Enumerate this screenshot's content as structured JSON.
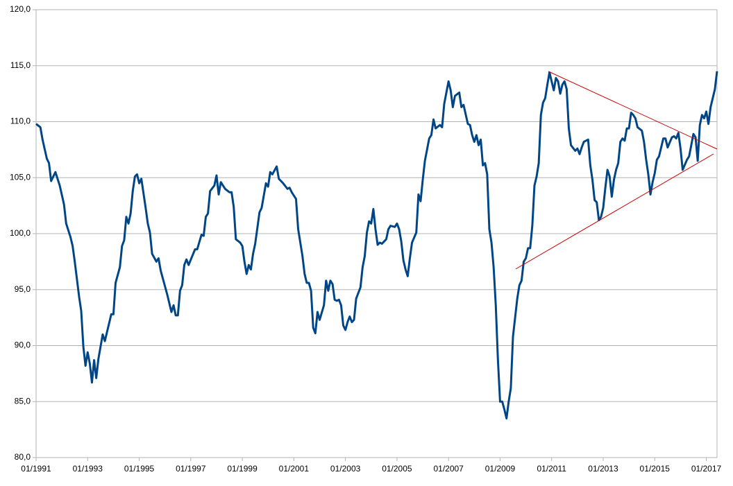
{
  "chart_data": {
    "type": "line",
    "x": [
      "01/1991",
      "03/1991",
      "04/1991",
      "06/1991",
      "07/1991",
      "08/1991",
      "10/1991",
      "12/1991",
      "02/1992",
      "03/1992",
      "05/1992",
      "06/1992",
      "07/1992",
      "09/1992",
      "10/1992",
      "11/1992",
      "12/1992",
      "01/1993",
      "02/1993",
      "03/1993",
      "04/1993",
      "05/1993",
      "06/1993",
      "08/1993",
      "09/1993",
      "12/1993",
      "01/1994",
      "02/1994",
      "04/1994",
      "05/1994",
      "06/1994",
      "07/1994",
      "08/1994",
      "09/1994",
      "10/1994",
      "11/1994",
      "12/1994",
      "01/1995",
      "02/1995",
      "04/1995",
      "05/1995",
      "06/1995",
      "07/1995",
      "09/1995",
      "10/1995",
      "11/1995",
      "12/1995",
      "02/1996",
      "04/1996",
      "05/1996",
      "06/1996",
      "07/1996",
      "08/1996",
      "09/1996",
      "10/1996",
      "11/1996",
      "12/1996",
      "03/1997",
      "04/1997",
      "06/1997",
      "07/1997",
      "08/1997",
      "09/1997",
      "10/1997",
      "12/1997",
      "01/1998",
      "02/1998",
      "03/1998",
      "05/1998",
      "07/1998",
      "08/1998",
      "09/1998",
      "10/1998",
      "12/1998",
      "01/1999",
      "02/1999",
      "03/1999",
      "04/1999",
      "05/1999",
      "06/1999",
      "07/1999",
      "09/1999",
      "10/1999",
      "12/1999",
      "01/2000",
      "02/2000",
      "03/2000",
      "05/2000",
      "06/2000",
      "08/2000",
      "10/2000",
      "11/2000",
      "12/2000",
      "02/2001",
      "03/2001",
      "05/2001",
      "06/2001",
      "07/2001",
      "08/2001",
      "09/2001",
      "10/2001",
      "11/2001",
      "12/2001",
      "01/2002",
      "03/2002",
      "04/2002",
      "05/2002",
      "06/2002",
      "07/2002",
      "08/2002",
      "09/2002",
      "10/2002",
      "11/2002",
      "12/2002",
      "01/2003",
      "02/2003",
      "03/2003",
      "04/2003",
      "05/2003",
      "06/2003",
      "08/2003",
      "09/2003",
      "10/2003",
      "11/2003",
      "12/2003",
      "01/2004",
      "02/2004",
      "03/2004",
      "04/2004",
      "05/2004",
      "06/2004",
      "08/2004",
      "09/2004",
      "10/2004",
      "12/2004",
      "01/2005",
      "02/2005",
      "03/2005",
      "04/2005",
      "05/2005",
      "06/2005",
      "07/2005",
      "08/2005",
      "10/2005",
      "11/2005",
      "12/2005",
      "01/2006",
      "02/2006",
      "04/2006",
      "05/2006",
      "06/2006",
      "07/2006",
      "09/2006",
      "10/2006",
      "11/2006",
      "01/2007",
      "02/2007",
      "03/2007",
      "04/2007",
      "06/2007",
      "07/2007",
      "08/2007",
      "10/2007",
      "11/2007",
      "12/2007",
      "01/2008",
      "02/2008",
      "03/2008",
      "04/2008",
      "05/2008",
      "06/2008",
      "07/2008",
      "08/2008",
      "09/2008",
      "10/2008",
      "11/2008",
      "12/2008",
      "01/2009",
      "02/2009",
      "03/2009",
      "04/2009",
      "05/2009",
      "06/2009",
      "07/2009",
      "09/2009",
      "10/2009",
      "11/2009",
      "12/2009",
      "01/2010",
      "02/2010",
      "03/2010",
      "04/2010",
      "05/2010",
      "06/2010",
      "07/2010",
      "08/2010",
      "09/2010",
      "10/2010",
      "11/2010",
      "12/2010",
      "02/2011",
      "03/2011",
      "04/2011",
      "05/2011",
      "06/2011",
      "07/2011",
      "08/2011",
      "09/2011",
      "10/2011",
      "12/2011",
      "01/2012",
      "02/2012",
      "03/2012",
      "04/2012",
      "06/2012",
      "07/2012",
      "08/2012",
      "09/2012",
      "10/2012",
      "11/2012",
      "12/2012",
      "01/2013",
      "02/2013",
      "03/2013",
      "04/2013",
      "05/2013",
      "06/2013",
      "07/2013",
      "08/2013",
      "09/2013",
      "10/2013",
      "11/2013",
      "12/2013",
      "01/2014",
      "02/2014",
      "03/2014",
      "04/2014",
      "05/2014",
      "07/2014",
      "08/2014",
      "09/2014",
      "10/2014",
      "11/2014",
      "12/2014",
      "01/2015",
      "02/2015",
      "03/2015",
      "04/2015",
      "05/2015",
      "06/2015",
      "07/2015",
      "09/2015",
      "10/2015",
      "11/2015",
      "12/2015",
      "01/2016",
      "02/2016",
      "04/2016",
      "05/2016",
      "06/2016",
      "07/2016",
      "08/2016",
      "09/2016",
      "10/2016",
      "11/2016",
      "12/2016",
      "01/2017",
      "02/2017",
      "03/2017",
      "04/2017",
      "05/2017",
      "06/2017"
    ],
    "series": [
      {
        "color": "#004586",
        "values": [
          109.8,
          109.5,
          108.4,
          106.7,
          106.3,
          104.7,
          105.5,
          104.3,
          102.6,
          100.9,
          99.7,
          98.9,
          97.5,
          94.4,
          93.1,
          89.9,
          88.2,
          89.4,
          88.4,
          86.7,
          88.7,
          87.1,
          88.8,
          91.0,
          90.4,
          92.8,
          92.8,
          95.6,
          97.0,
          98.9,
          99.4,
          101.5,
          100.9,
          101.8,
          103.8,
          105.1,
          105.3,
          104.5,
          104.9,
          102.3,
          100.9,
          100.1,
          98.2,
          97.5,
          97.8,
          96.7,
          96.0,
          94.6,
          93.0,
          93.6,
          92.7,
          92.7,
          94.9,
          95.4,
          97.2,
          97.7,
          97.2,
          98.6,
          98.6,
          99.9,
          99.8,
          101.5,
          101.8,
          103.8,
          104.3,
          105.2,
          103.5,
          104.6,
          104.0,
          103.7,
          103.7,
          102.4,
          99.5,
          99.2,
          98.9,
          97.5,
          96.4,
          97.2,
          96.8,
          98.2,
          99.1,
          101.9,
          102.3,
          104.5,
          104.2,
          105.5,
          105.3,
          106.0,
          104.9,
          104.5,
          104.0,
          104.1,
          103.7,
          103.1,
          100.4,
          98.0,
          96.4,
          95.6,
          95.6,
          94.9,
          91.6,
          91.1,
          93.0,
          92.3,
          93.6,
          95.8,
          94.9,
          95.8,
          95.5,
          94.1,
          94.0,
          94.1,
          93.6,
          91.8,
          91.4,
          92.1,
          92.6,
          92.1,
          92.3,
          94.2,
          95.2,
          97.0,
          98.0,
          100.1,
          101.1,
          100.9,
          102.2,
          100.4,
          99.0,
          99.2,
          99.1,
          99.5,
          100.4,
          100.7,
          100.6,
          100.9,
          100.4,
          99.3,
          97.6,
          96.8,
          96.2,
          97.8,
          99.2,
          100.1,
          103.5,
          102.9,
          104.8,
          106.5,
          108.5,
          108.8,
          110.2,
          109.4,
          109.7,
          109.5,
          111.6,
          113.6,
          112.8,
          111.3,
          112.3,
          112.6,
          111.3,
          111.5,
          109.8,
          109.7,
          108.8,
          108.2,
          108.8,
          107.9,
          108.4,
          106.1,
          106.3,
          105.3,
          100.4,
          99.2,
          97.0,
          93.6,
          88.7,
          85.0,
          85.0,
          84.3,
          83.5,
          85.0,
          86.2,
          90.8,
          94.2,
          95.4,
          95.8,
          97.5,
          97.8,
          98.7,
          98.7,
          100.7,
          104.3,
          105.1,
          106.3,
          110.6,
          111.7,
          112.1,
          113.3,
          114.4,
          112.8,
          113.9,
          113.6,
          112.5,
          113.3,
          113.6,
          112.9,
          109.4,
          107.9,
          107.4,
          107.6,
          107.1,
          107.7,
          108.2,
          108.4,
          106.1,
          104.8,
          103.0,
          102.8,
          101.2,
          101.5,
          102.3,
          104.1,
          105.7,
          105.1,
          103.3,
          104.8,
          105.7,
          106.3,
          108.2,
          108.5,
          108.3,
          109.4,
          109.4,
          110.8,
          110.6,
          110.3,
          109.5,
          109.2,
          108.2,
          106.6,
          105.3,
          103.5,
          104.6,
          105.4,
          106.6,
          106.9,
          107.7,
          108.5,
          108.5,
          107.7,
          108.6,
          108.7,
          108.5,
          109.0,
          107.6,
          105.7,
          106.6,
          106.9,
          107.9,
          108.9,
          108.6,
          106.5,
          109.7,
          110.6,
          110.3,
          110.9,
          109.8,
          111.3,
          112.1,
          112.9,
          114.5
        ]
      }
    ],
    "xlim": [
      "01/1991",
      "06/2017"
    ],
    "xticks": [
      "01/1991",
      "01/1993",
      "01/1995",
      "01/1997",
      "01/1999",
      "01/2001",
      "01/2003",
      "01/2005",
      "01/2007",
      "01/2009",
      "01/2011",
      "01/2013",
      "01/2015",
      "01/2017"
    ],
    "ylim": [
      80,
      120
    ],
    "yticks": [
      {
        "value": 80,
        "label": "80,0"
      },
      {
        "value": 85,
        "label": "85,0"
      },
      {
        "value": 90,
        "label": "90,0"
      },
      {
        "value": 95,
        "label": "95,0"
      },
      {
        "value": 100,
        "label": "100,0"
      },
      {
        "value": 105,
        "label": "105,0"
      },
      {
        "value": 110,
        "label": "110,0"
      },
      {
        "value": 115,
        "label": "115,0"
      },
      {
        "value": 120,
        "label": "120,0"
      }
    ],
    "grid": true
  }
}
